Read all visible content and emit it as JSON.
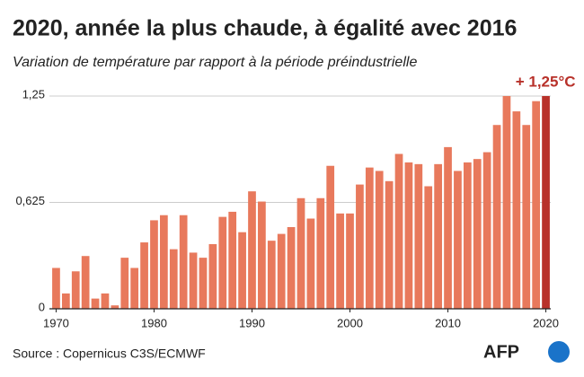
{
  "chart_data": {
    "type": "bar",
    "title": "2020, année la plus chaude, à égalité avec 2016",
    "subtitle": "Variation de température par rapport à la période préindustrielle",
    "source": "Source : Copernicus C3S/ECMWF",
    "logo": "AFP",
    "x": [
      1970,
      1971,
      1972,
      1973,
      1974,
      1975,
      1976,
      1977,
      1978,
      1979,
      1980,
      1981,
      1982,
      1983,
      1984,
      1985,
      1986,
      1987,
      1988,
      1989,
      1990,
      1991,
      1992,
      1993,
      1994,
      1995,
      1996,
      1997,
      1998,
      1999,
      2000,
      2001,
      2002,
      2003,
      2004,
      2005,
      2006,
      2007,
      2008,
      2009,
      2010,
      2011,
      2012,
      2013,
      2014,
      2015,
      2016,
      2017,
      2018,
      2019,
      2020
    ],
    "values": [
      0.24,
      0.09,
      0.22,
      0.31,
      0.06,
      0.09,
      0.02,
      0.3,
      0.24,
      0.39,
      0.52,
      0.55,
      0.35,
      0.55,
      0.33,
      0.3,
      0.38,
      0.54,
      0.57,
      0.45,
      0.69,
      0.63,
      0.4,
      0.44,
      0.48,
      0.65,
      0.53,
      0.65,
      0.84,
      0.56,
      0.56,
      0.73,
      0.83,
      0.81,
      0.75,
      0.91,
      0.86,
      0.85,
      0.72,
      0.85,
      0.95,
      0.81,
      0.86,
      0.88,
      0.92,
      1.08,
      1.25,
      1.16,
      1.08,
      1.22,
      1.25
    ],
    "color": "#e8795c",
    "highlight": {
      "x": 2020,
      "color": "#b8312a",
      "label": "+ 1,25°C"
    },
    "xlim": [
      1969.5,
      2020.5
    ],
    "xticks": [
      1970,
      1980,
      1990,
      2000,
      2010,
      2020
    ],
    "ylim": [
      0,
      1.25
    ],
    "yticks": [
      0,
      {
        "value": 0.625,
        "label": "0,625"
      },
      {
        "value": 1.25,
        "label": "1,25"
      }
    ],
    "grid": true
  }
}
